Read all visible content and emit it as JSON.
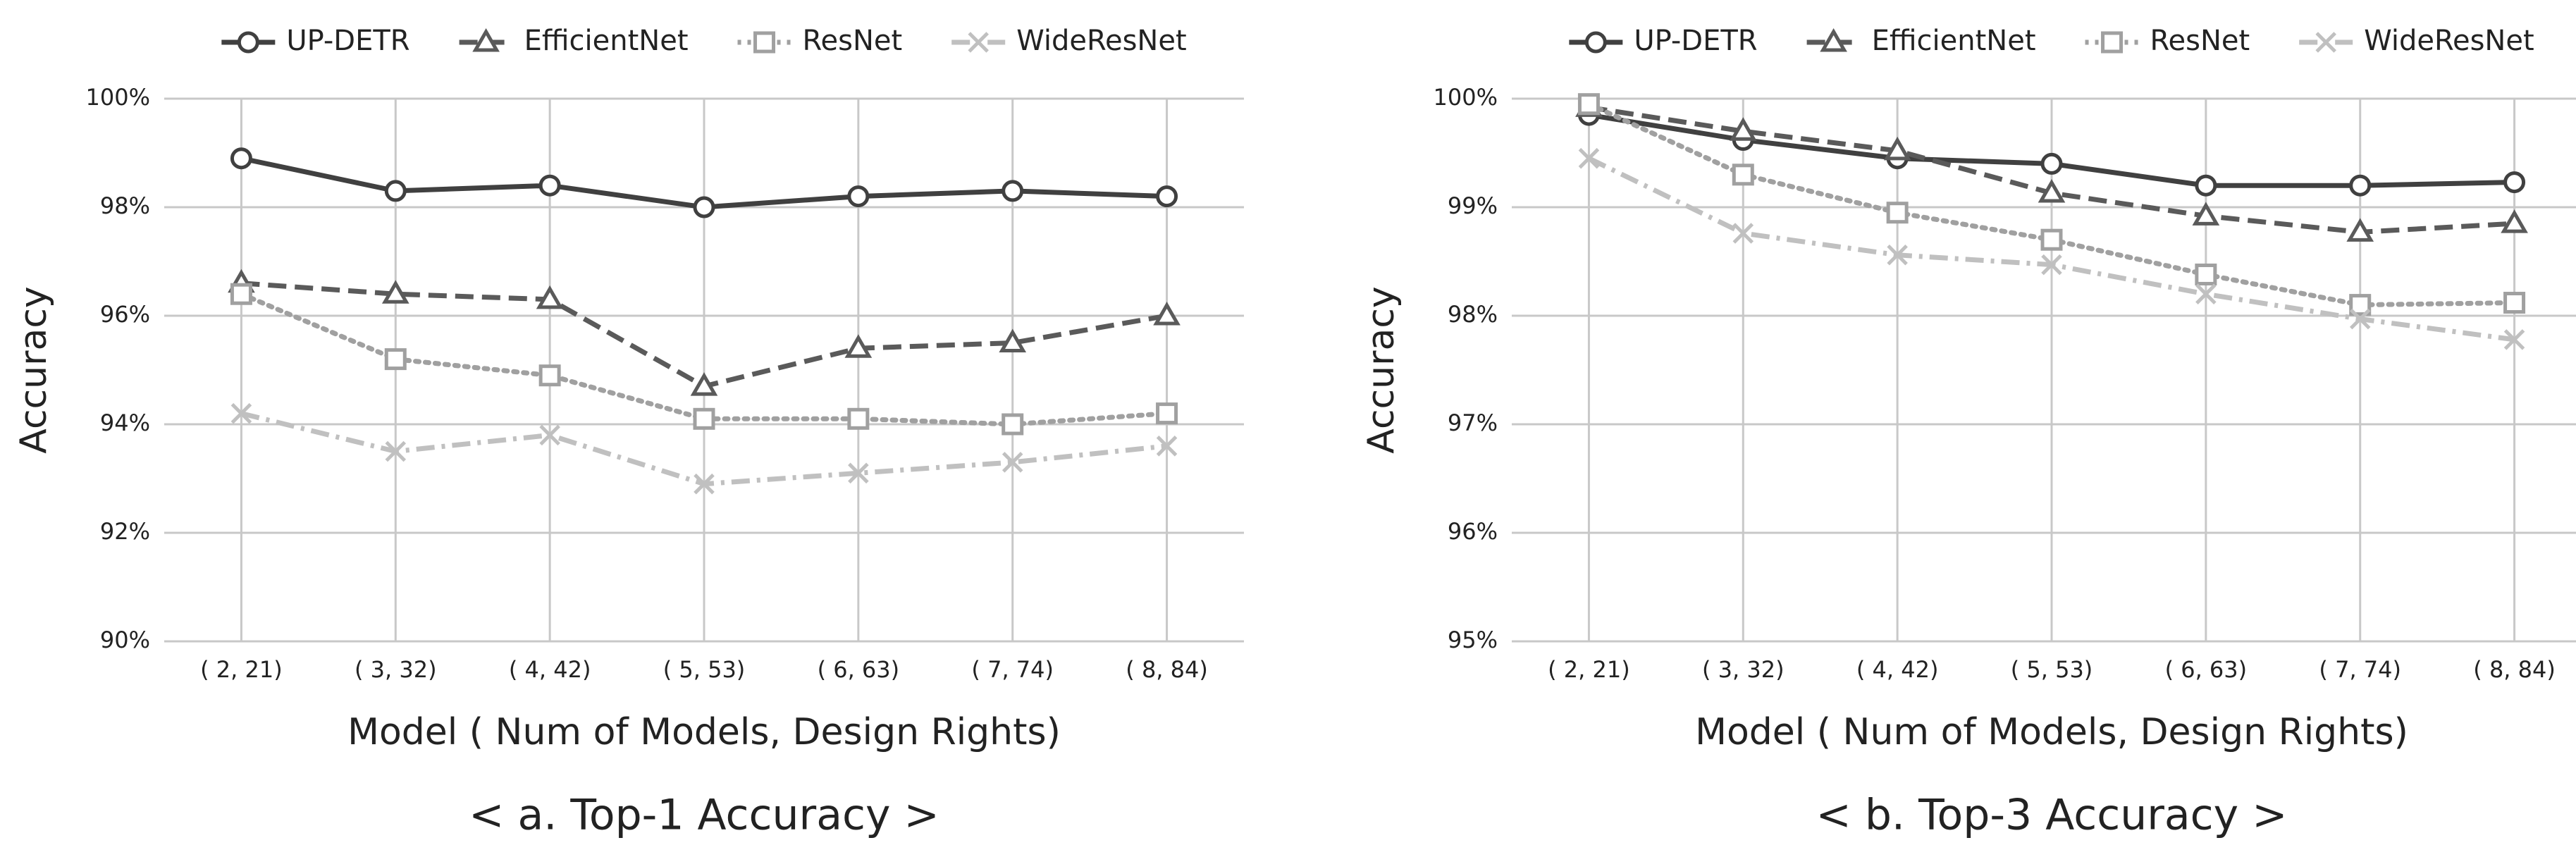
{
  "chart_data": [
    {
      "type": "line",
      "title": "< a. Top-1 Accuracy >",
      "x_label": "Model ( Num of Models, Design Rights)",
      "y_label": "Accuracy",
      "categories": [
        "( 2, 21)",
        "( 3, 32)",
        "( 4, 42)",
        "( 5, 53)",
        "( 6, 63)",
        "( 7, 74)",
        "( 8, 84)"
      ],
      "ylim": [
        90,
        100
      ],
      "yticks": [
        {
          "value": 90,
          "label": "90%"
        },
        {
          "value": 92,
          "label": "92%"
        },
        {
          "value": 94,
          "label": "94%"
        },
        {
          "value": 96,
          "label": "96%"
        },
        {
          "value": 98,
          "label": "98%"
        },
        {
          "value": 100,
          "label": "100%"
        }
      ],
      "grid": true,
      "legend": "top",
      "series": [
        {
          "name": "UP-DETR",
          "color": "#404040",
          "line_style": "solid",
          "marker": "circle",
          "values": [
            98.9,
            98.3,
            98.4,
            98.0,
            98.2,
            98.3,
            98.2
          ]
        },
        {
          "name": "EfficientNet",
          "color": "#5a5a5a",
          "line_style": "dashed",
          "marker": "triangle",
          "values": [
            96.6,
            96.4,
            96.3,
            94.7,
            95.4,
            95.5,
            96.0
          ]
        },
        {
          "name": "ResNet",
          "color": "#a0a0a0",
          "line_style": "dotted",
          "marker": "square",
          "values": [
            96.4,
            95.2,
            94.9,
            94.1,
            94.1,
            94.0,
            94.2
          ]
        },
        {
          "name": "WideResNet",
          "color": "#c0c0c0",
          "line_style": "dashdot",
          "marker": "x",
          "values": [
            94.2,
            93.5,
            93.8,
            92.9,
            93.1,
            93.3,
            93.6
          ]
        }
      ]
    },
    {
      "type": "line",
      "title": "< b. Top-3 Accuracy >",
      "x_label": "Model ( Num of Models, Design Rights)",
      "y_label": "Accuracy",
      "categories": [
        "( 2, 21)",
        "( 3, 32)",
        "( 4, 42)",
        "( 5, 53)",
        "( 6, 63)",
        "( 7, 74)",
        "( 8, 84)"
      ],
      "ylim": [
        95,
        100
      ],
      "yticks": [
        {
          "value": 95,
          "label": "95%"
        },
        {
          "value": 96,
          "label": "96%"
        },
        {
          "value": 97,
          "label": "97%"
        },
        {
          "value": 98,
          "label": "98%"
        },
        {
          "value": 99,
          "label": "99%"
        },
        {
          "value": 100,
          "label": "100%"
        }
      ],
      "grid": true,
      "legend": "top",
      "series": [
        {
          "name": "UP-DETR",
          "color": "#404040",
          "line_style": "solid",
          "marker": "circle",
          "values": [
            99.85,
            99.62,
            99.45,
            99.4,
            99.2,
            99.2,
            99.23
          ]
        },
        {
          "name": "EfficientNet",
          "color": "#5a5a5a",
          "line_style": "dashed",
          "marker": "triangle",
          "values": [
            99.92,
            99.7,
            99.52,
            99.13,
            98.92,
            98.77,
            98.85
          ]
        },
        {
          "name": "ResNet",
          "color": "#a0a0a0",
          "line_style": "dotted",
          "marker": "square",
          "values": [
            99.95,
            99.3,
            98.95,
            98.7,
            98.38,
            98.1,
            98.12
          ]
        },
        {
          "name": "WideResNet",
          "color": "#c0c0c0",
          "line_style": "dashdot",
          "marker": "x",
          "values": [
            99.45,
            98.76,
            98.56,
            98.47,
            98.2,
            97.97,
            97.78
          ]
        }
      ]
    }
  ]
}
